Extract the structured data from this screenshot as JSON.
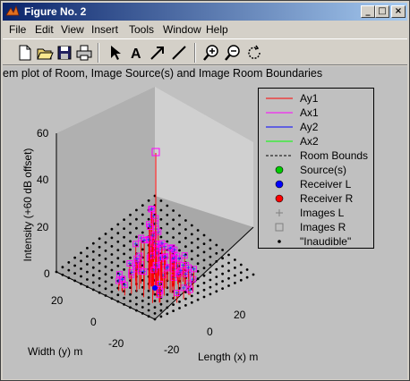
{
  "window": {
    "title": "Figure No. 2"
  },
  "menu": [
    "File",
    "Edit",
    "View",
    "Insert",
    "Tools",
    "Window",
    "Help"
  ],
  "toolbar_icons": [
    "new-file-icon",
    "open-folder-icon",
    "save-icon",
    "print-icon",
    "pointer-arrow-icon",
    "text-tool-icon",
    "arrow-tool-icon",
    "line-tool-icon",
    "zoom-in-icon",
    "zoom-out-icon",
    "rotate-3d-icon"
  ],
  "plot": {
    "title_visible": "em plot of Room, Image Source(s) and Image Room Boundaries",
    "zlabel": "Intensity (+60 dB offset)",
    "ylabel": "Width (y) m",
    "xlabel": "Length (x) m",
    "z_ticks": [
      "60",
      "40",
      "20",
      "0"
    ],
    "y_ticks": [
      "20",
      "0",
      "-20"
    ],
    "x_ticks": [
      "20",
      "0",
      "-20"
    ]
  },
  "legend": {
    "entries": [
      {
        "label": "Ay1",
        "kind": "line",
        "color": "#ff0000"
      },
      {
        "label": "Ax1",
        "kind": "line",
        "color": "#ff00ff"
      },
      {
        "label": "Ay2",
        "kind": "line",
        "color": "#0000ff"
      },
      {
        "label": "Ax2",
        "kind": "line",
        "color": "#00ff00"
      },
      {
        "label": "Room Bounds",
        "kind": "dashed",
        "color": "#000000"
      },
      {
        "label": "Source(s)",
        "kind": "dot",
        "color": "#00cc00"
      },
      {
        "label": "Receiver L",
        "kind": "dot",
        "color": "#0000ff"
      },
      {
        "label": "Receiver R",
        "kind": "dot",
        "color": "#ff0000"
      },
      {
        "label": "Images L",
        "kind": "plus",
        "color": "#808080"
      },
      {
        "label": "Images R",
        "kind": "square",
        "color": "#808080"
      },
      {
        "label": "\"Inaudible\"",
        "kind": "smalldot",
        "color": "#000000"
      }
    ]
  }
}
